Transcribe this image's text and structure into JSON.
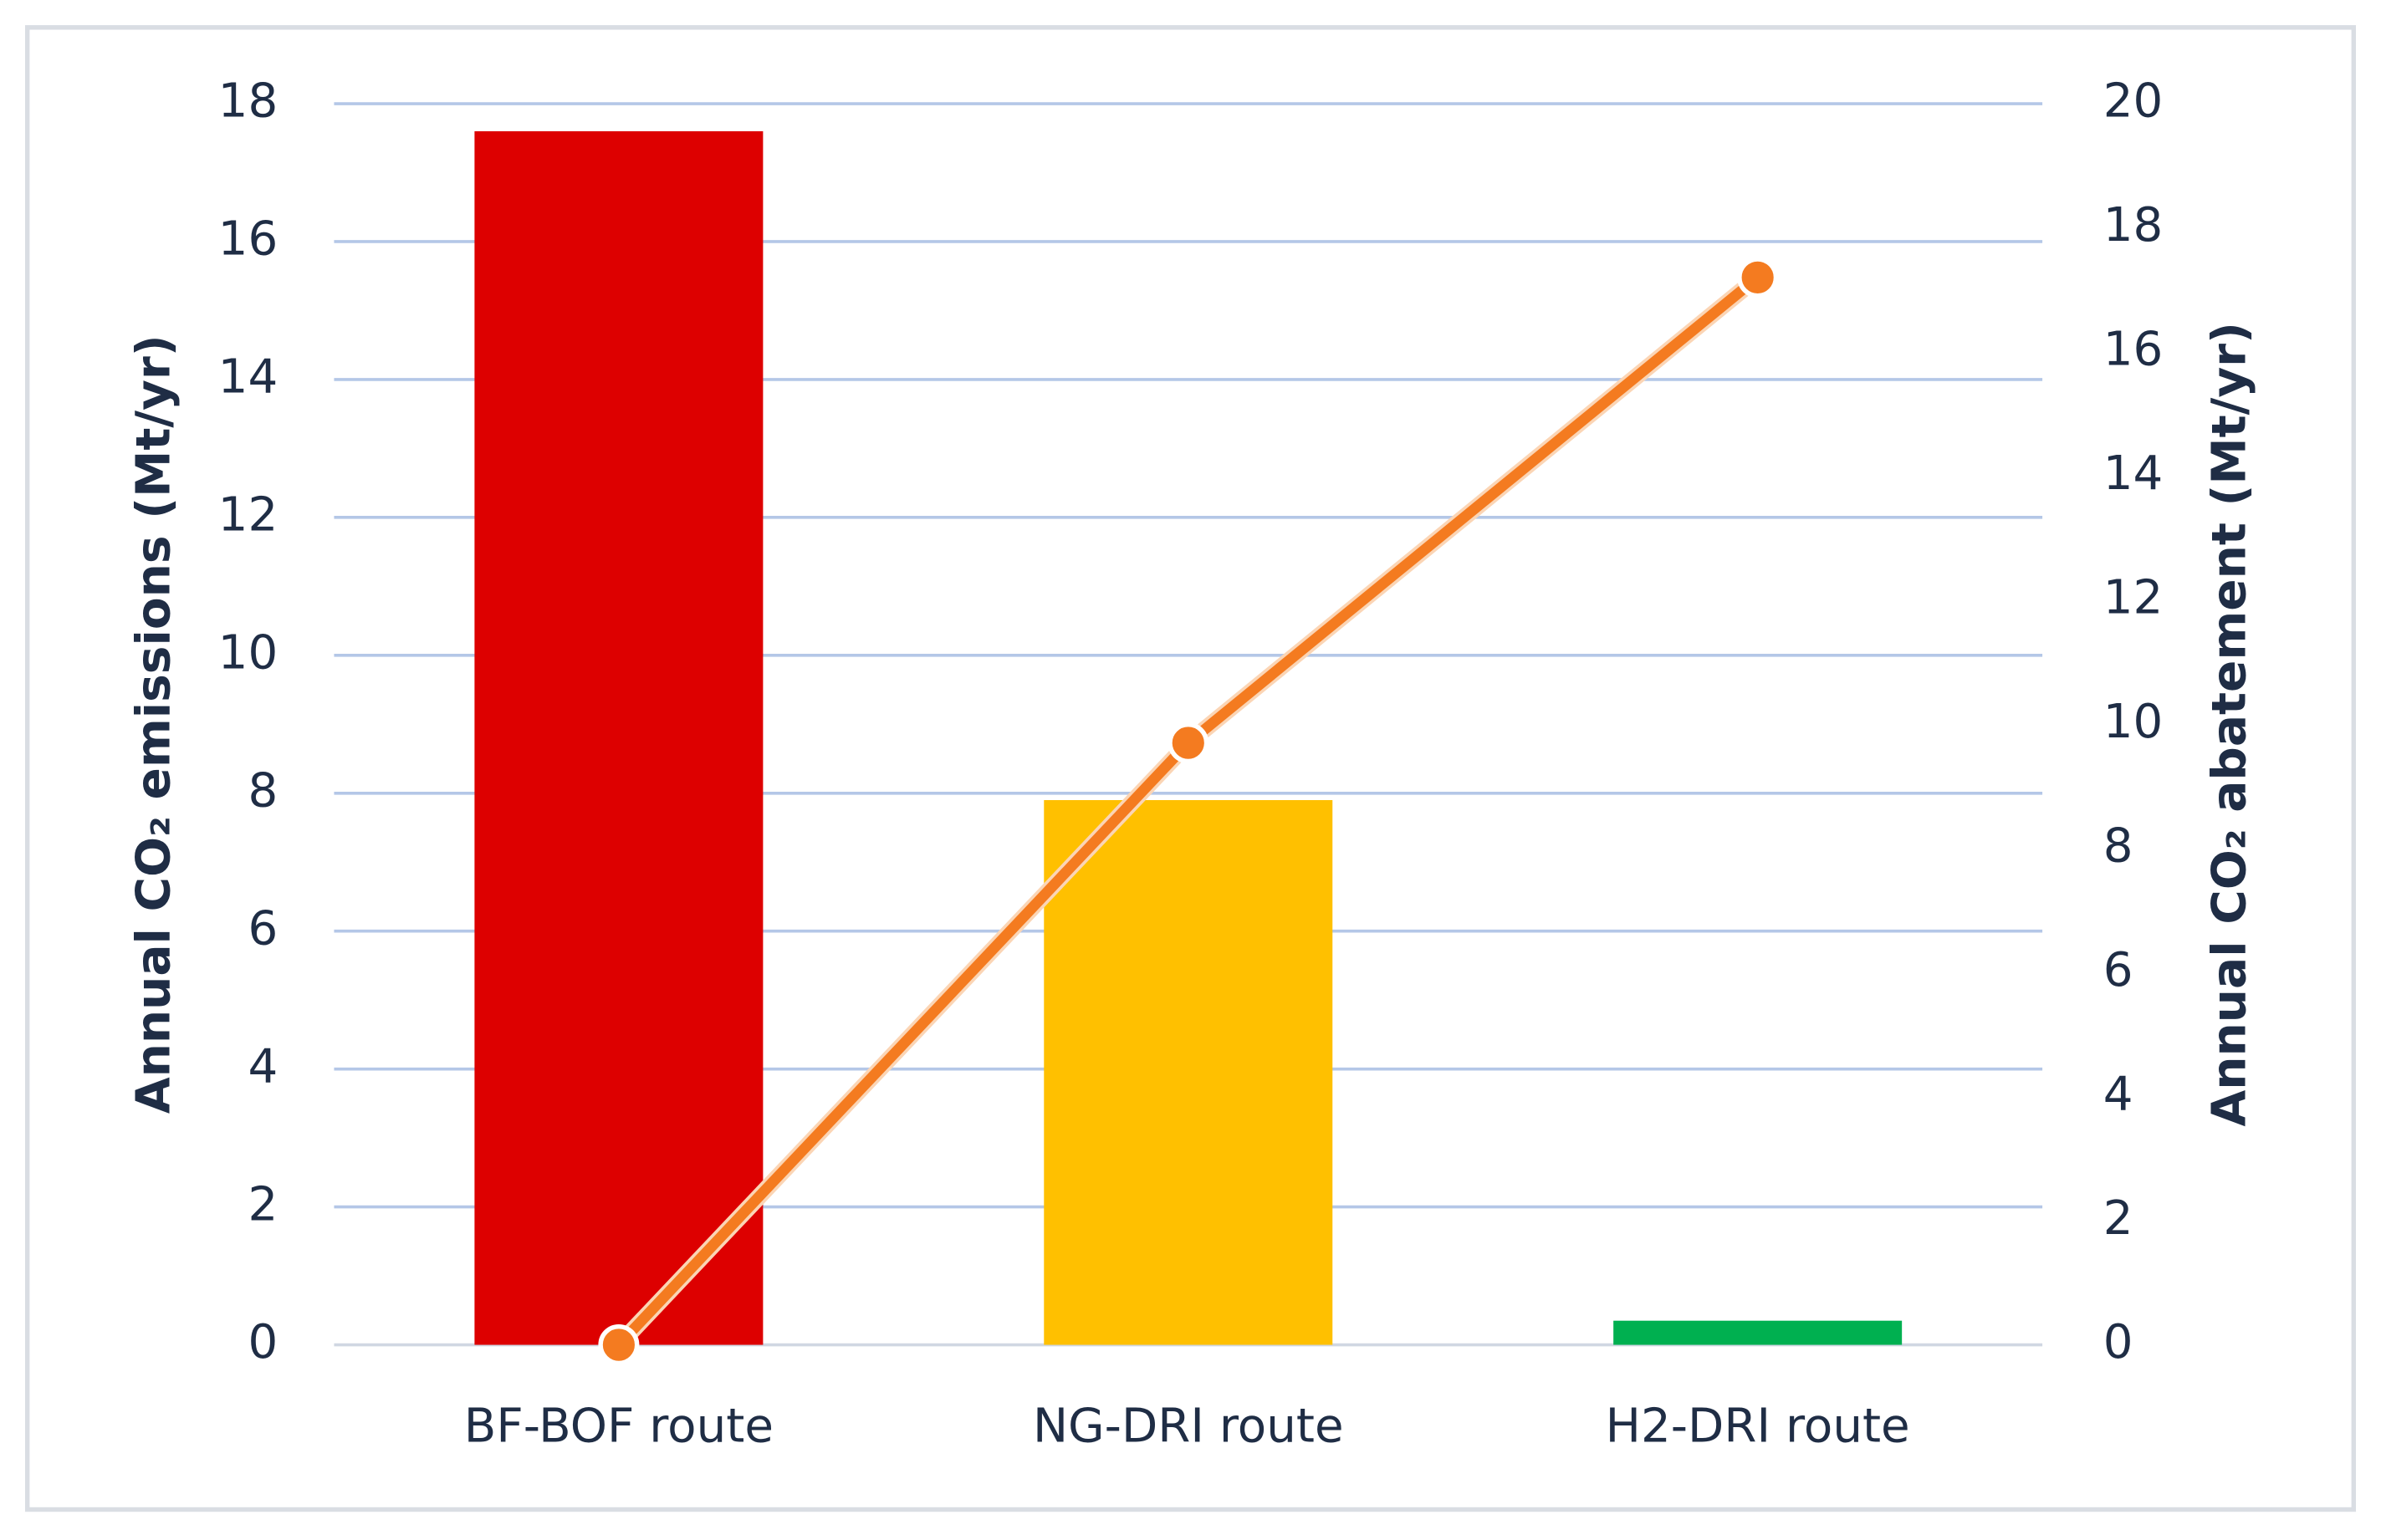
{
  "chart_data": {
    "type": "bar",
    "categories": [
      "BF-BOF route",
      "NG-DRI route",
      "H2-DRI route"
    ],
    "series": [
      {
        "type": "bar",
        "values": [
          17.6,
          7.9,
          0.35
        ],
        "colors": [
          "#dd0000",
          "#ffc000",
          "#00b050"
        ]
      },
      {
        "type": "line",
        "axis": "y2",
        "values": [
          0,
          9.7,
          17.2
        ],
        "color": "#f47b20"
      }
    ],
    "ylabel": "Annual CO₂ emissions (Mt/yr)",
    "y2label": "Annual CO₂ abatement (Mt/yr)",
    "ylim": [
      0,
      18
    ],
    "yticks": [
      0,
      2,
      4,
      6,
      8,
      10,
      12,
      14,
      16,
      18
    ],
    "y2lim": [
      0,
      20
    ],
    "y2ticks": [
      0,
      2,
      4,
      6,
      8,
      10,
      12,
      14,
      16,
      18,
      20
    ],
    "grid": true
  }
}
